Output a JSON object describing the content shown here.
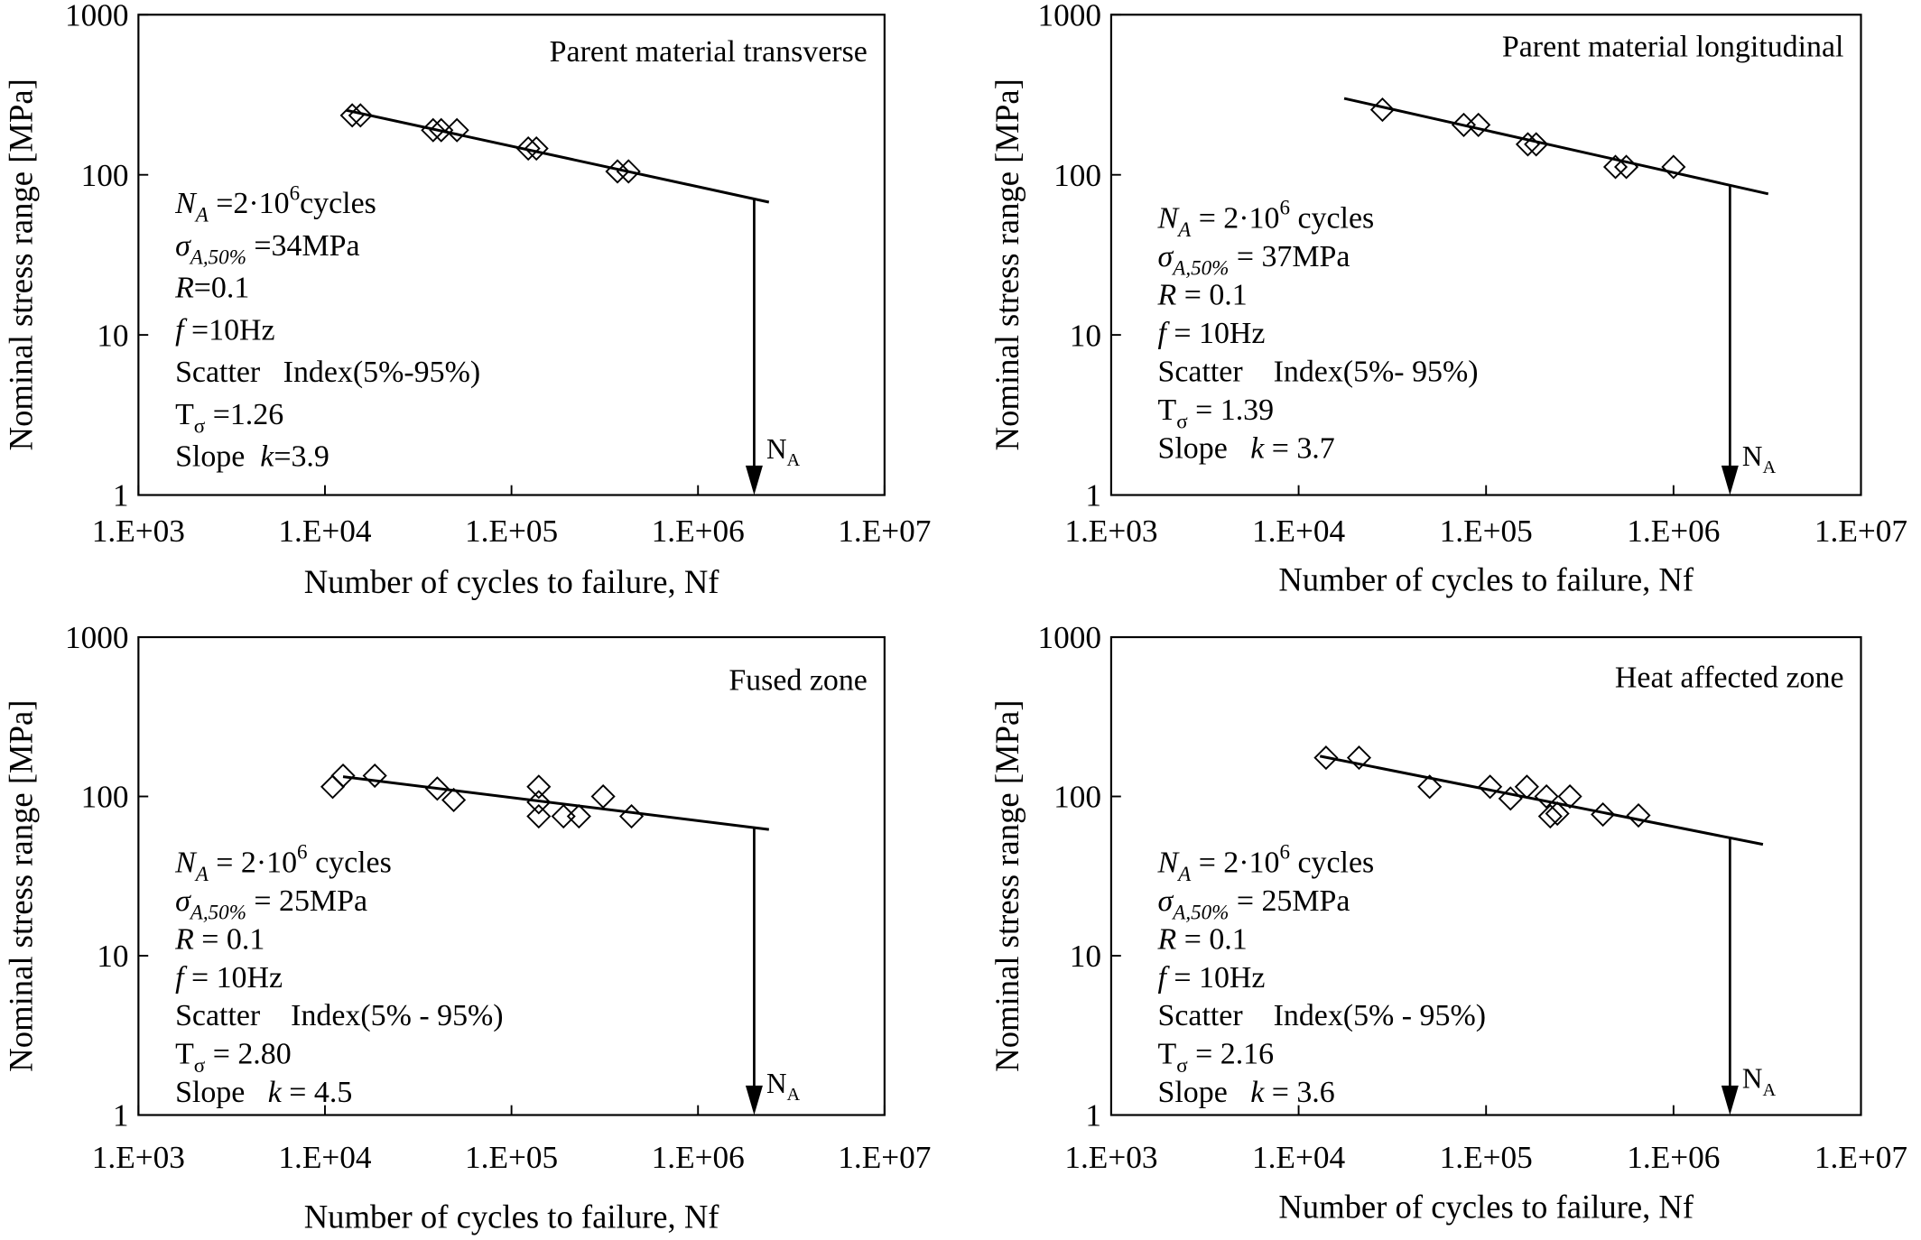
{
  "chart_data": [
    {
      "type": "scatter",
      "title": "Parent material transverse",
      "xlabel": "Number of cycles to failure, Nf",
      "ylabel": "Nominal stress range [MPa]",
      "xscale": "log",
      "yscale": "log",
      "grid": false,
      "xlim": [
        1000,
        10000000
      ],
      "ylim": [
        1,
        1000
      ],
      "xticks": [
        1000,
        10000,
        100000,
        1000000,
        10000000
      ],
      "xtick_labels": [
        "1.E+03",
        "1.E+04",
        "1.E+05",
        "1.E+06",
        "1.E+07"
      ],
      "yticks": [
        1,
        10,
        100,
        1000
      ],
      "ytick_labels": [
        "1",
        "10",
        "100",
        "1000"
      ],
      "series": [
        {
          "marker": "diamond",
          "x": [
            14000,
            15500,
            38000,
            42000,
            51000,
            123000,
            136000,
            370000,
            424000
          ],
          "y": [
            235,
            235,
            190,
            190,
            190,
            146,
            146,
            105,
            105
          ]
        },
        {
          "type": "line",
          "x": [
            13000,
            2400000
          ],
          "y": [
            253,
            67.5
          ]
        }
      ],
      "na_marker": {
        "x": 2000000,
        "label": [
          {
            "t": "N"
          },
          {
            "sub": "A"
          }
        ]
      },
      "annotations": [
        [
          {
            "i": "N"
          },
          {
            "isub": "A"
          },
          {
            "t": " =2·10"
          },
          {
            "sup": "6"
          },
          {
            "t": "cycles"
          }
        ],
        [
          {
            "i": "σ"
          },
          {
            "isub": "A,50%"
          },
          {
            "t": " =34MPa"
          }
        ],
        [
          {
            "i": "R"
          },
          {
            "t": "=0.1"
          }
        ],
        [
          {
            "i": "f"
          },
          {
            "t": " =10Hz"
          }
        ],
        [
          {
            "t": "Scatter   Index(5%-95%)"
          }
        ],
        [
          {
            "t": "T"
          },
          {
            "sub": "σ"
          },
          {
            "t": " =1.26"
          }
        ],
        [
          {
            "t": "Slope  "
          },
          {
            "i": "k"
          },
          {
            "t": "=3.9"
          }
        ]
      ]
    },
    {
      "type": "scatter",
      "title": "Parent material longitudinal",
      "xlabel": "Number of cycles to failure, Nf",
      "ylabel": "Nominal stress range [MPa]",
      "xscale": "log",
      "yscale": "log",
      "grid": false,
      "xlim": [
        1000,
        10000000
      ],
      "ylim": [
        1,
        1000
      ],
      "xticks": [
        1000,
        10000,
        100000,
        1000000,
        10000000
      ],
      "xtick_labels": [
        "1.E+03",
        "1.E+04",
        "1.E+05",
        "1.E+06",
        "1.E+07"
      ],
      "yticks": [
        1,
        10,
        100,
        1000
      ],
      "ytick_labels": [
        "1",
        "10",
        "100",
        "1000"
      ],
      "series": [
        {
          "marker": "diamond",
          "x": [
            28000,
            76000,
            91000,
            167000,
            185000,
            490000,
            560000,
            1000000
          ],
          "y": [
            255,
            205,
            205,
            155,
            155,
            112,
            112,
            112
          ]
        },
        {
          "type": "line",
          "x": [
            17500,
            3200000
          ],
          "y": [
            300,
            76
          ]
        }
      ],
      "na_marker": {
        "x": 2000000,
        "label": [
          {
            "t": "N"
          },
          {
            "sub": "A"
          }
        ]
      },
      "annotations": [
        [
          {
            "i": "N"
          },
          {
            "isub": "A"
          },
          {
            "t": " = 2·10"
          },
          {
            "sup": "6"
          },
          {
            "t": " cycles"
          }
        ],
        [
          {
            "i": "σ"
          },
          {
            "isub": "A,50%"
          },
          {
            "t": " = 37MPa"
          }
        ],
        [
          {
            "i": "R"
          },
          {
            "t": " = 0.1"
          }
        ],
        [
          {
            "i": "f"
          },
          {
            "t": " = 10Hz"
          }
        ],
        [
          {
            "t": "Scatter    Index(5%- 95%)"
          }
        ],
        [
          {
            "t": "T"
          },
          {
            "sub": "σ"
          },
          {
            "t": " = 1.39"
          }
        ],
        [
          {
            "t": "Slope   "
          },
          {
            "i": "k"
          },
          {
            "t": " = 3.7"
          }
        ]
      ]
    },
    {
      "type": "scatter",
      "title": "Fused zone",
      "xlabel": "Number of cycles to failure, Nf",
      "ylabel": "Nominal stress range [MPa]",
      "xscale": "log",
      "yscale": "log",
      "grid": false,
      "xlim": [
        1000,
        10000000
      ],
      "ylim": [
        1,
        1000
      ],
      "xticks": [
        1000,
        10000,
        100000,
        1000000,
        10000000
      ],
      "xtick_labels": [
        "1.E+03",
        "1.E+04",
        "1.E+05",
        "1.E+06",
        "1.E+07"
      ],
      "yticks": [
        1,
        10,
        100,
        1000
      ],
      "ytick_labels": [
        "1",
        "10",
        "100",
        "1000"
      ],
      "series": [
        {
          "marker": "diamond",
          "x": [
            11000,
            12500,
            18500,
            40000,
            49000,
            140000,
            140000,
            140000,
            190000,
            230000,
            310000,
            440000
          ],
          "y": [
            115,
            135,
            135,
            112,
            95,
            115,
            92,
            75,
            75,
            75,
            100,
            75
          ]
        },
        {
          "type": "line",
          "x": [
            12500,
            2400000
          ],
          "y": [
            133,
            62
          ]
        }
      ],
      "na_marker": {
        "x": 2000000,
        "label": [
          {
            "t": "N"
          },
          {
            "sub": "A"
          }
        ]
      },
      "annotations": [
        [
          {
            "i": "N"
          },
          {
            "isub": "A"
          },
          {
            "t": " = 2·10"
          },
          {
            "sup": "6"
          },
          {
            "t": " cycles"
          }
        ],
        [
          {
            "i": "σ"
          },
          {
            "isub": "A,50%"
          },
          {
            "t": " = 25MPa"
          }
        ],
        [
          {
            "i": "R"
          },
          {
            "t": " = 0.1"
          }
        ],
        [
          {
            "i": "f"
          },
          {
            "t": " = 10Hz"
          }
        ],
        [
          {
            "t": "Scatter    Index(5% - 95%)"
          }
        ],
        [
          {
            "t": "T"
          },
          {
            "sub": "σ"
          },
          {
            "t": " = 2.80"
          }
        ],
        [
          {
            "t": "Slope   "
          },
          {
            "i": "k"
          },
          {
            "t": " = 4.5"
          }
        ]
      ]
    },
    {
      "type": "scatter",
      "title": "Heat affected zone",
      "xlabel": "Number of cycles to failure, Nf",
      "ylabel": "Nominal stress range [MPa]",
      "xscale": "log",
      "yscale": "log",
      "grid": false,
      "xlim": [
        1000,
        10000000
      ],
      "ylim": [
        1,
        1000
      ],
      "xticks": [
        1000,
        10000,
        100000,
        1000000,
        10000000
      ],
      "xtick_labels": [
        "1.E+03",
        "1.E+04",
        "1.E+05",
        "1.E+06",
        "1.E+07"
      ],
      "yticks": [
        1,
        10,
        100,
        1000
      ],
      "ytick_labels": [
        "1",
        "10",
        "100",
        "1000"
      ],
      "series": [
        {
          "marker": "diamond",
          "x": [
            14000,
            21000,
            50000,
            105000,
            135000,
            165000,
            210000,
            220000,
            240000,
            280000,
            420000,
            650000
          ],
          "y": [
            175,
            175,
            115,
            115,
            97,
            115,
            100,
            75,
            78,
            100,
            77,
            76
          ]
        },
        {
          "type": "line",
          "x": [
            13000,
            3000000
          ],
          "y": [
            179,
            50
          ]
        }
      ],
      "na_marker": {
        "x": 2000000,
        "label": [
          {
            "t": "N"
          },
          {
            "sub": "A"
          }
        ]
      },
      "annotations": [
        [
          {
            "i": "N"
          },
          {
            "isub": "A"
          },
          {
            "t": " = 2·10"
          },
          {
            "sup": "6"
          },
          {
            "t": " cycles"
          }
        ],
        [
          {
            "i": "σ"
          },
          {
            "isub": "A,50%"
          },
          {
            "t": " = 25MPa"
          }
        ],
        [
          {
            "i": "R"
          },
          {
            "t": " = 0.1"
          }
        ],
        [
          {
            "i": "f"
          },
          {
            "t": " = 10Hz"
          }
        ],
        [
          {
            "t": "Scatter    Index(5% - 95%)"
          }
        ],
        [
          {
            "t": "T"
          },
          {
            "sub": "σ"
          },
          {
            "t": " = 2.16"
          }
        ],
        [
          {
            "t": "Slope   "
          },
          {
            "i": "k"
          },
          {
            "t": " = 3.6"
          }
        ]
      ]
    }
  ]
}
